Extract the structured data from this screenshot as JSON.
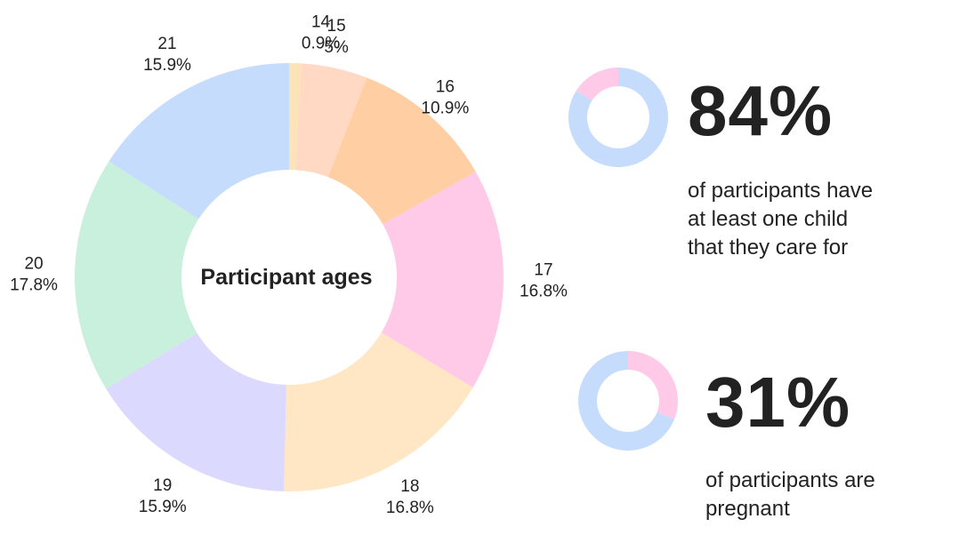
{
  "chart_data": [
    {
      "type": "pie",
      "variant": "donut",
      "title": "Participant ages",
      "categories": [
        "14",
        "15",
        "16",
        "17",
        "18",
        "19",
        "20",
        "21"
      ],
      "values": [
        0.9,
        5,
        10.9,
        16.8,
        16.8,
        15.9,
        17.8,
        15.9
      ],
      "value_labels": [
        "0.9%",
        "5%",
        "10.9%",
        "16.8%",
        "16.8%",
        "15.9%",
        "17.8%",
        "15.9%"
      ],
      "colors": [
        "#FCE3B8",
        "#FFD9C4",
        "#FFCFA3",
        "#FFC9E8",
        "#FFE7C5",
        "#DCD9FF",
        "#C8F0DD",
        "#C6DCFD"
      ]
    },
    {
      "type": "pie",
      "variant": "donut",
      "values": [
        84,
        16
      ],
      "colors": [
        "#C6DCFD",
        "#FFC9E8"
      ]
    },
    {
      "type": "pie",
      "variant": "donut",
      "values": [
        31,
        69
      ],
      "colors": [
        "#FFC9E8",
        "#C6DCFD"
      ]
    }
  ],
  "stats": [
    {
      "value": "84%",
      "lines": [
        "of participants have",
        "at least one child",
        "that they care for"
      ]
    },
    {
      "value": "31%",
      "lines": [
        "of participants are",
        "pregnant"
      ]
    }
  ]
}
